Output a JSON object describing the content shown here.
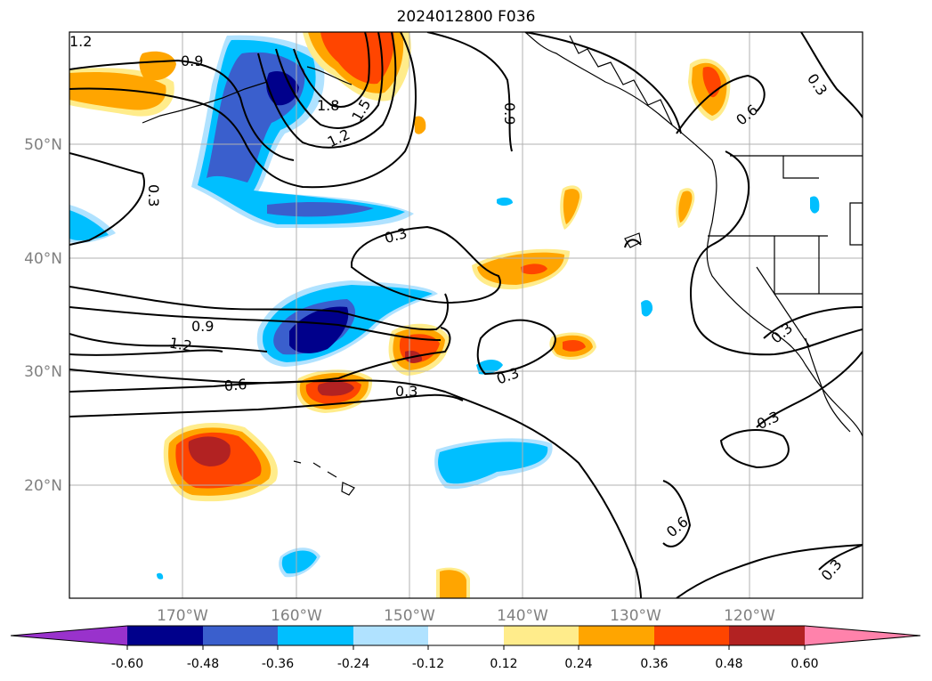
{
  "title": "2024012800 F036",
  "lat_labels": [
    "50°N",
    "40°N",
    "30°N",
    "20°N"
  ],
  "lon_labels": [
    "170°W",
    "160°W",
    "150°W",
    "140°W",
    "130°W",
    "120°W"
  ],
  "contour_labels": [
    "1.2",
    "0.9",
    "0.3",
    "1.8",
    "1.5",
    "1.2",
    "0.9",
    "0.3",
    "0.3",
    "0.9",
    "1.2",
    "0.6",
    "0.3",
    "0.3",
    "0.3",
    "0.3",
    "0.6",
    "0.3",
    "0.6"
  ],
  "colorbar": {
    "ticks": [
      "-0.60",
      "-0.48",
      "-0.36",
      "-0.24",
      "-0.12",
      "0.12",
      "0.24",
      "0.36",
      "0.48",
      "0.60"
    ],
    "colors": [
      "#9932cc",
      "#00008b",
      "#3a5fcd",
      "#00bfff",
      "#b0e2ff",
      "#ffffff",
      "#ffec8b",
      "#ffa500",
      "#ff4500",
      "#b22222",
      "#ff82ab"
    ]
  },
  "grid": "on"
}
